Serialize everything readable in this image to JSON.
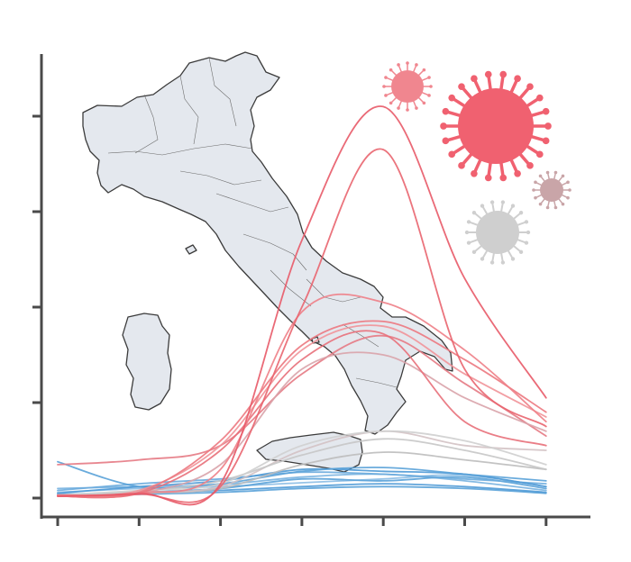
{
  "chart_data": {
    "type": "line",
    "title": "",
    "xlabel": "",
    "ylabel": "",
    "x": [
      0,
      1,
      2,
      3,
      4,
      5,
      6
    ],
    "xlim": [
      0,
      6.5
    ],
    "ylim": [
      0,
      4.5
    ],
    "x_ticks": [
      0,
      1,
      2,
      3,
      4,
      5,
      6
    ],
    "y_ticks": [
      0,
      1,
      2,
      3,
      4
    ],
    "grid": false,
    "legend": "none",
    "background_map": "italy-map",
    "series": [
      {
        "color": "#e85a68",
        "values": [
          0.02,
          0.05,
          0.15,
          2.7,
          4.1,
          2.3,
          1.05
        ]
      },
      {
        "color": "#e9656f",
        "values": [
          0.02,
          0.04,
          0.12,
          2.0,
          3.65,
          1.35,
          0.75
        ]
      },
      {
        "color": "#ee8087",
        "values": [
          0.03,
          0.05,
          0.3,
          1.95,
          2.05,
          1.55,
          0.8
        ]
      },
      {
        "color": "#ec7880",
        "values": [
          0.02,
          0.06,
          0.6,
          1.6,
          1.85,
          1.45,
          0.9
        ]
      },
      {
        "color": "#f19499",
        "values": [
          0.03,
          0.08,
          0.55,
          1.55,
          1.8,
          1.3,
          0.85
        ]
      },
      {
        "color": "#e8707a",
        "values": [
          0.02,
          0.05,
          0.5,
          1.45,
          1.72,
          0.8,
          0.55
        ]
      },
      {
        "color": "#d9a3aa",
        "values": [
          0.02,
          0.05,
          0.35,
          1.35,
          1.5,
          1.05,
          0.7
        ]
      },
      {
        "color": "#e67a84",
        "values": [
          0.35,
          0.4,
          0.55,
          1.3,
          1.7,
          1.2,
          0.65
        ]
      },
      {
        "color": "#cfcfcf",
        "values": [
          0.03,
          0.08,
          0.15,
          0.55,
          0.7,
          0.6,
          0.35
        ]
      },
      {
        "color": "#c6c6c6",
        "values": [
          0.03,
          0.07,
          0.18,
          0.45,
          0.62,
          0.5,
          0.3
        ]
      },
      {
        "color": "#d3c2c4",
        "values": [
          0.03,
          0.06,
          0.12,
          0.5,
          0.7,
          0.55,
          0.5
        ]
      },
      {
        "color": "#bdbdbd",
        "values": [
          0.02,
          0.05,
          0.1,
          0.35,
          0.48,
          0.4,
          0.3
        ]
      },
      {
        "color": "#5aa2d8",
        "values": [
          0.38,
          0.12,
          0.15,
          0.28,
          0.32,
          0.25,
          0.18
        ]
      },
      {
        "color": "#4f9ad6",
        "values": [
          0.05,
          0.12,
          0.18,
          0.3,
          0.28,
          0.25,
          0.12
        ]
      },
      {
        "color": "#6aabdd",
        "values": [
          0.08,
          0.15,
          0.2,
          0.27,
          0.25,
          0.2,
          0.15
        ]
      },
      {
        "color": "#5aa2d8",
        "values": [
          0.04,
          0.06,
          0.1,
          0.2,
          0.18,
          0.22,
          0.1
        ]
      },
      {
        "color": "#78b3e0",
        "values": [
          0.1,
          0.12,
          0.14,
          0.22,
          0.25,
          0.18,
          0.08
        ]
      },
      {
        "color": "#4f9ad6",
        "values": [
          0.03,
          0.05,
          0.08,
          0.12,
          0.15,
          0.12,
          0.06
        ]
      },
      {
        "color": "#8bbde4",
        "values": [
          0.06,
          0.1,
          0.12,
          0.16,
          0.2,
          0.24,
          0.12
        ]
      },
      {
        "color": "#5aa2d8",
        "values": [
          0.02,
          0.04,
          0.06,
          0.1,
          0.12,
          0.1,
          0.05
        ]
      }
    ]
  },
  "decor": {
    "virus_colors": [
      "#f06170",
      "#f0868f",
      "#c9a5a8",
      "#cfcfcf"
    ]
  }
}
